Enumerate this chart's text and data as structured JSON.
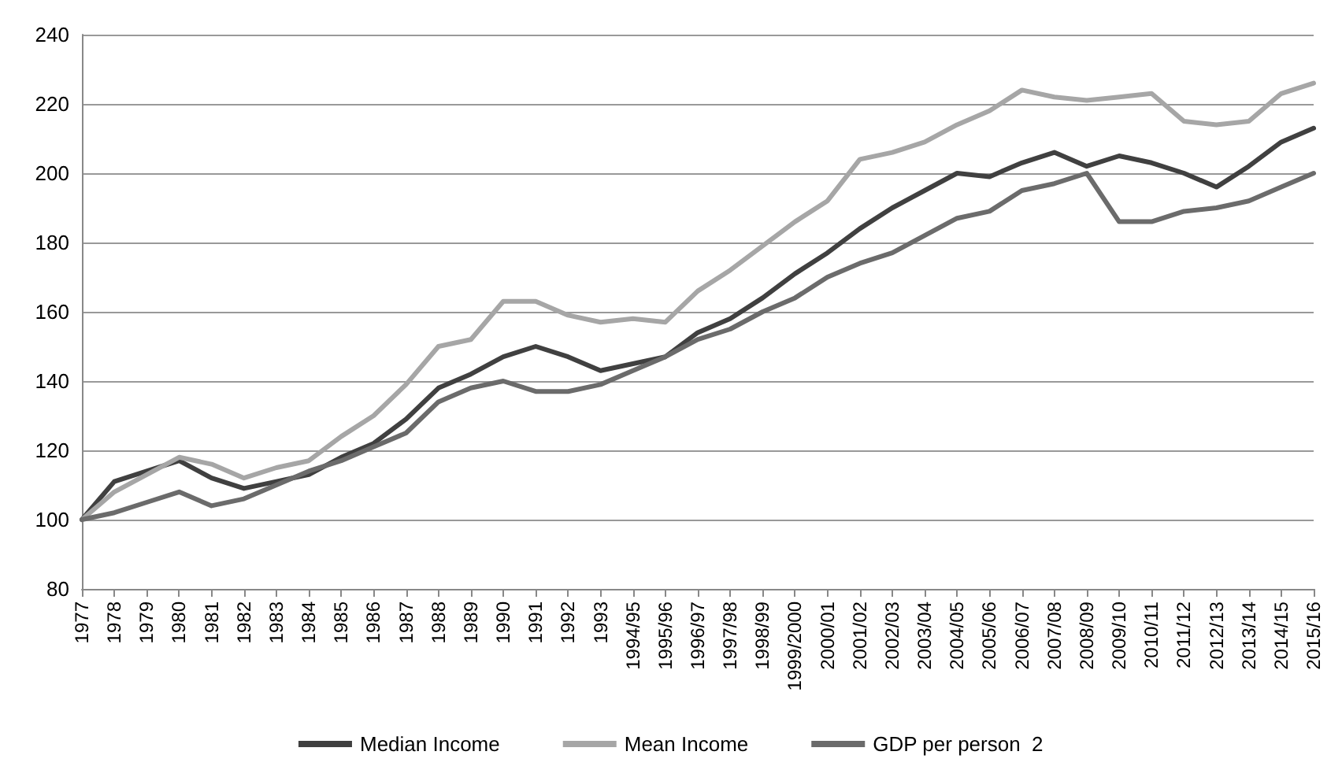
{
  "chart_data": {
    "type": "line",
    "categories": [
      "1977",
      "1978",
      "1979",
      "1980",
      "1981",
      "1982",
      "1983",
      "1984",
      "1985",
      "1986",
      "1987",
      "1988",
      "1989",
      "1990",
      "1991",
      "1992",
      "1993",
      "1994/95",
      "1995/96",
      "1996/97",
      "1997/98",
      "1998/99",
      "1999/2000",
      "2000/01",
      "2001/02",
      "2002/03",
      "2003/04",
      "2004/05",
      "2005/06",
      "2006/07",
      "2007/08",
      "2008/09",
      "2009/10",
      "2010/11",
      "2011/12",
      "2012/13",
      "2013/14",
      "2014/15",
      "2015/16"
    ],
    "series": [
      {
        "name": "Median Income",
        "color": "#404040",
        "values": [
          100,
          111,
          114,
          117,
          112,
          109,
          111,
          113,
          118,
          122,
          129,
          138,
          142,
          147,
          150,
          147,
          143,
          145,
          147,
          154,
          158,
          164,
          171,
          177,
          184,
          190,
          195,
          200,
          199,
          203,
          206,
          202,
          205,
          203,
          200,
          196,
          202,
          209,
          213
        ]
      },
      {
        "name": "Mean Income",
        "color": "#a6a6a6",
        "values": [
          100,
          108,
          113,
          118,
          116,
          112,
          115,
          117,
          124,
          130,
          139,
          150,
          152,
          163,
          163,
          159,
          157,
          158,
          157,
          166,
          172,
          179,
          186,
          192,
          204,
          206,
          209,
          214,
          218,
          224,
          222,
          221,
          222,
          223,
          215,
          214,
          215,
          223,
          226
        ]
      },
      {
        "name": "GDP per person  2",
        "color": "#6b6b6b",
        "values": [
          100,
          102,
          105,
          108,
          104,
          106,
          110,
          114,
          117,
          121,
          125,
          134,
          138,
          140,
          137,
          137,
          139,
          143,
          147,
          152,
          155,
          160,
          164,
          170,
          174,
          177,
          182,
          187,
          189,
          195,
          197,
          200,
          186,
          186,
          189,
          190,
          192,
          196,
          200
        ]
      }
    ],
    "ylim": [
      80,
      240
    ],
    "yticks": [
      80,
      100,
      120,
      140,
      160,
      180,
      200,
      220,
      240
    ],
    "grid": "y",
    "legend": "bottom",
    "marker": "none",
    "line_style": "solid"
  }
}
